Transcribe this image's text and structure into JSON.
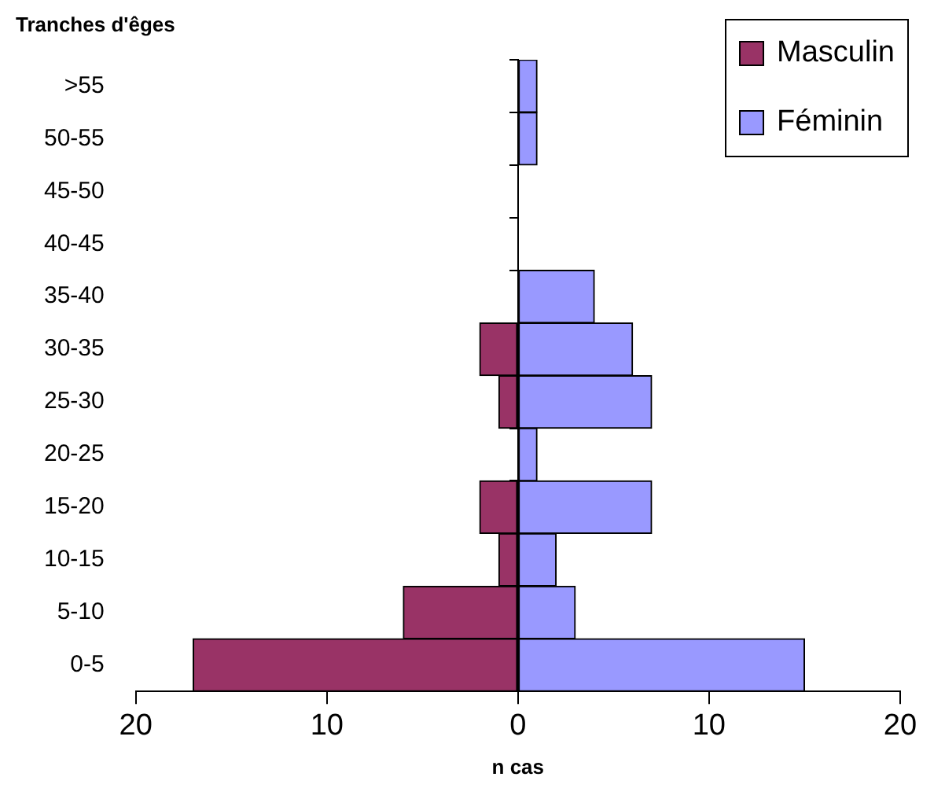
{
  "chart_data": {
    "type": "bar",
    "orientation": "horizontal",
    "stacked": true,
    "ylabel": "Tranches d'êges",
    "xlabel": "n cas",
    "categories": [
      ">55",
      "50-55",
      "45-50",
      "40-45",
      "35-40",
      "30-35",
      "25-30",
      "20-25",
      "15-20",
      "10-15",
      "5-10",
      "0-5"
    ],
    "series": [
      {
        "name": "Masculin",
        "color": "#993366",
        "values": [
          0,
          0,
          0,
          0,
          0,
          -2,
          -1,
          0,
          -2,
          -1,
          -6,
          -17
        ]
      },
      {
        "name": "Féminin",
        "color": "#9999ff",
        "values": [
          1,
          1,
          0,
          0,
          4,
          6,
          7,
          1,
          7,
          2,
          3,
          15
        ]
      }
    ],
    "xlim": [
      -20,
      20
    ],
    "xticks": [
      {
        "value": -20,
        "label": "20"
      },
      {
        "value": -10,
        "label": "10"
      },
      0,
      10,
      20
    ],
    "legend": "top right"
  }
}
